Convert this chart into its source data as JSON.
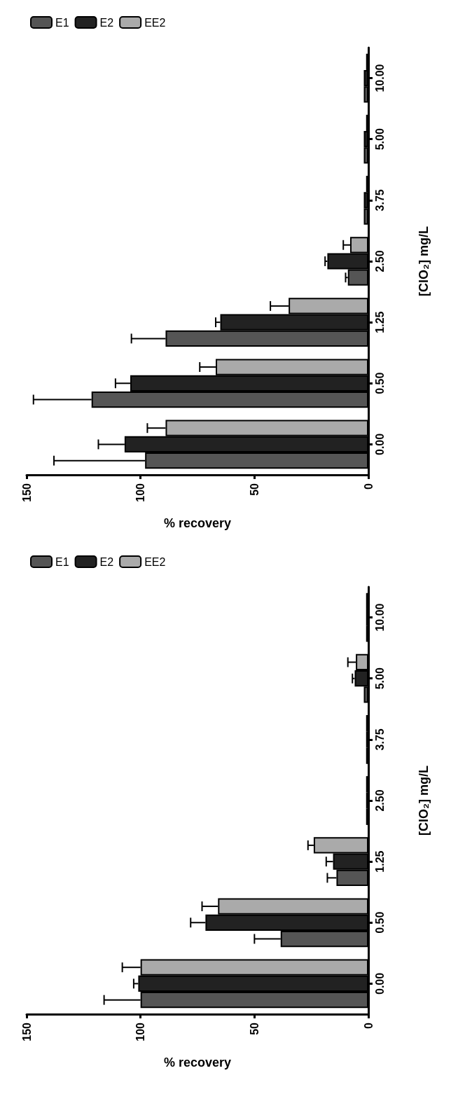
{
  "chart_data": [
    {
      "type": "bar",
      "orientation": "horizontal",
      "xlabel": "% recovery",
      "ylabel": "[ClO₂] mg/L",
      "categories": [
        "10.00",
        "5.00",
        "3.75",
        "2.50",
        "1.25",
        "0.50",
        "0.00"
      ],
      "xlim": [
        150,
        0
      ],
      "xticks": [
        0,
        50,
        100,
        150
      ],
      "legend": "top left",
      "grid": false,
      "series": [
        {
          "name": "E1",
          "color": "#555555",
          "values": [
            2,
            2,
            2,
            9,
            89,
            121.5,
            98
          ],
          "errors": [
            null,
            null,
            null,
            1,
            15,
            25.5,
            40
          ]
        },
        {
          "name": "E2",
          "color": "#222222",
          "values": [
            2,
            2,
            2,
            18,
            65,
            104.5,
            107
          ],
          "errors": [
            null,
            null,
            null,
            1,
            2,
            6.5,
            11.5
          ]
        },
        {
          "name": "EE2",
          "color": "#aaaaaa",
          "values": [
            1,
            1,
            1,
            8,
            35,
            67,
            89
          ],
          "errors": [
            null,
            null,
            null,
            3,
            8,
            7,
            8
          ]
        }
      ]
    },
    {
      "type": "bar",
      "orientation": "horizontal",
      "xlabel": "% recovery",
      "ylabel": "[ClO₂] mg/L",
      "categories": [
        "10.00",
        "5.00",
        "3.75",
        "2.50",
        "1.25",
        "0.50",
        "0.00"
      ],
      "xlim": [
        150,
        0
      ],
      "xticks": [
        0,
        50,
        100,
        150
      ],
      "legend": "top left",
      "grid": false,
      "series": [
        {
          "name": "E1",
          "color": "#555555",
          "values": [
            1,
            2,
            1,
            1,
            14,
            38.5,
            100
          ],
          "errors": [
            null,
            null,
            null,
            null,
            4,
            11.5,
            16
          ]
        },
        {
          "name": "E2",
          "color": "#222222",
          "values": [
            1,
            6,
            1,
            1,
            15.5,
            71.5,
            101
          ],
          "errors": [
            null,
            1,
            null,
            null,
            3,
            6.5,
            2
          ]
        },
        {
          "name": "EE2",
          "color": "#aaaaaa",
          "values": [
            1,
            5.5,
            1,
            1,
            24,
            66,
            100
          ],
          "errors": [
            null,
            3.5,
            null,
            null,
            2.5,
            7,
            8
          ]
        }
      ]
    }
  ]
}
